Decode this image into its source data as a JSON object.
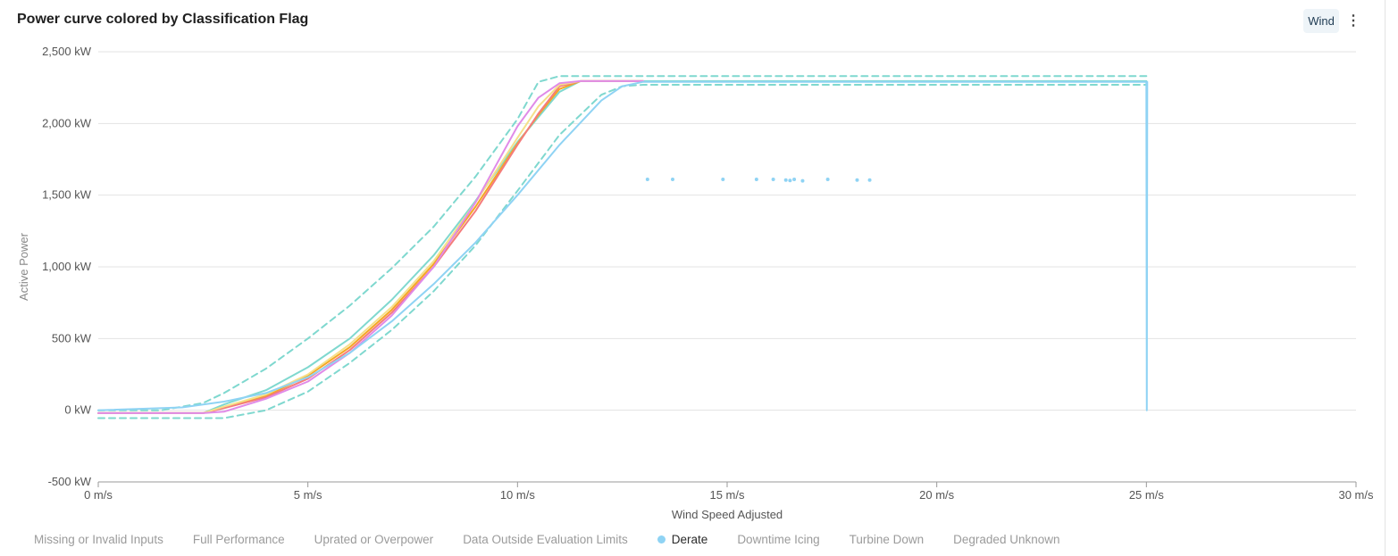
{
  "header": {
    "title": "Power curve colored by Classification Flag",
    "wind_button": "Wind",
    "more_icon": "more-vertical-icon"
  },
  "legend": [
    {
      "label": "Missing or Invalid Inputs",
      "active": false
    },
    {
      "label": "Full Performance",
      "active": false
    },
    {
      "label": "Uprated or Overpower",
      "active": false
    },
    {
      "label": "Data Outside Evaluation Limits",
      "active": false
    },
    {
      "label": "Derate",
      "active": true,
      "color": "#8fd3f4"
    },
    {
      "label": "Downtime Icing",
      "active": false
    },
    {
      "label": "Turbine Down",
      "active": false
    },
    {
      "label": "Degraded Unknown",
      "active": false
    }
  ],
  "chart_data": {
    "type": "line",
    "title": "Power curve colored by Classification Flag",
    "xlabel": "Wind Speed Adjusted",
    "ylabel": "Active Power",
    "xlim": [
      0,
      30
    ],
    "ylim": [
      -500,
      2500
    ],
    "xticks": [
      0,
      5,
      10,
      15,
      20,
      25,
      30
    ],
    "xtick_labels": [
      "0 m/s",
      "5 m/s",
      "10 m/s",
      "15 m/s",
      "20 m/s",
      "25 m/s",
      "30 m/s"
    ],
    "yticks": [
      -500,
      0,
      500,
      1000,
      1500,
      2000,
      2500
    ],
    "ytick_labels": [
      "-500 kW",
      "0 kW",
      "500 kW",
      "1,000 kW",
      "1,500 kW",
      "2,000 kW",
      "2,500 kW"
    ],
    "grid": true,
    "legend_position": "bottom",
    "series": [
      {
        "color": "#7fd8cf",
        "style": "dashed",
        "x": [
          0,
          1.5,
          2.5,
          3,
          4,
          5,
          6,
          7,
          8,
          9,
          10,
          10.5,
          11,
          11.5,
          12,
          13,
          15,
          20,
          25
        ],
        "y": [
          0,
          0,
          50,
          120,
          290,
          500,
          730,
          990,
          1280,
          1630,
          2030,
          2290,
          2330,
          2330,
          2330,
          2330,
          2330,
          2330,
          2330
        ]
      },
      {
        "color": "#7fd8cf",
        "style": "dashed",
        "x": [
          0,
          3,
          4,
          5,
          6,
          7,
          8,
          9,
          10,
          11,
          12,
          12.5,
          13,
          15,
          20,
          25
        ],
        "y": [
          -55,
          -55,
          0,
          130,
          330,
          560,
          830,
          1150,
          1530,
          1920,
          2200,
          2260,
          2270,
          2270,
          2270,
          2270
        ]
      },
      {
        "color": "#7fd8cf",
        "style": "solid",
        "x": [
          0,
          2.5,
          3,
          4,
          5,
          6,
          7,
          8,
          9,
          10,
          11,
          11.5,
          13,
          25
        ],
        "y": [
          -20,
          -20,
          40,
          140,
          300,
          500,
          770,
          1080,
          1460,
          1870,
          2220,
          2295,
          2295,
          2295
        ]
      },
      {
        "color": "#f5a623",
        "style": "solid",
        "x": [
          0,
          2.5,
          3,
          4,
          5,
          6,
          7,
          8,
          9,
          10,
          10.5,
          11,
          11.5,
          13
        ],
        "y": [
          -20,
          -20,
          20,
          100,
          240,
          440,
          700,
          1020,
          1420,
          1860,
          2060,
          2240,
          2295,
          2295
        ]
      },
      {
        "color": "#f47c7c",
        "style": "solid",
        "x": [
          0,
          2.5,
          3,
          4,
          5,
          6,
          7,
          8,
          9,
          10,
          10.5,
          11,
          11.5,
          13
        ],
        "y": [
          -20,
          -20,
          15,
          90,
          220,
          420,
          680,
          1000,
          1390,
          1850,
          2070,
          2260,
          2295,
          2295
        ]
      },
      {
        "color": "#f5e08a",
        "style": "solid",
        "x": [
          0,
          2.5,
          3,
          4,
          5,
          6,
          7,
          8,
          9,
          10,
          10.5,
          11,
          11.5,
          13
        ],
        "y": [
          -20,
          -20,
          25,
          110,
          250,
          460,
          720,
          1040,
          1450,
          1900,
          2120,
          2270,
          2295,
          2295
        ]
      },
      {
        "color": "#e08be8",
        "style": "solid",
        "x": [
          0,
          2.5,
          3,
          4,
          5,
          6,
          7,
          8,
          9,
          10,
          10.5,
          11,
          11.5,
          13
        ],
        "y": [
          -20,
          -20,
          -10,
          80,
          200,
          400,
          660,
          1000,
          1450,
          1980,
          2180,
          2280,
          2295,
          2295
        ]
      },
      {
        "color": "#8fd3f4",
        "style": "solid",
        "x": [
          0,
          2,
          3,
          4,
          5,
          6,
          7,
          8,
          9,
          10,
          11,
          12,
          12.5,
          13,
          25,
          25.01,
          25.02
        ],
        "y": [
          0,
          20,
          60,
          120,
          230,
          400,
          620,
          880,
          1170,
          1500,
          1850,
          2160,
          2260,
          2290,
          2290,
          0,
          2290
        ]
      }
    ],
    "scatter": {
      "name": "Derate",
      "color": "#8fd3f4",
      "x": [
        13.1,
        13.7,
        14.9,
        15.7,
        16.1,
        16.4,
        16.5,
        16.6,
        16.8,
        17.4,
        18.1,
        18.4
      ],
      "y": [
        1610,
        1610,
        1610,
        1610,
        1610,
        1605,
        1602,
        1610,
        1600,
        1610,
        1605,
        1605
      ]
    }
  }
}
